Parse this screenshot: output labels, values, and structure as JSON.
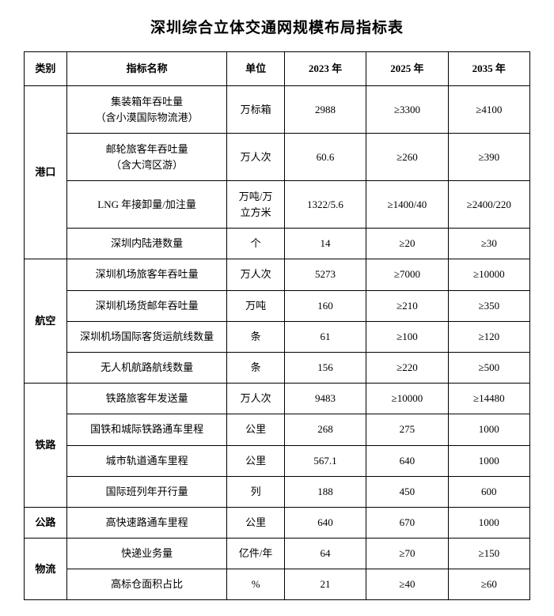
{
  "title": "深圳综合立体交通网规模布局指标表",
  "headers": {
    "category": "类别",
    "indicator": "指标名称",
    "unit": "单位",
    "y2023": "2023 年",
    "y2025": "2025 年",
    "y2035": "2035 年"
  },
  "groups": [
    {
      "category": "港口",
      "rows": [
        {
          "name": "集装箱年吞吐量\n（含小漠国际物流港）",
          "unit": "万标箱",
          "y2023": "2988",
          "y2025": "≥3300",
          "y2035": "≥4100"
        },
        {
          "name": "邮轮旅客年吞吐量\n（含大湾区游）",
          "unit": "万人次",
          "y2023": "60.6",
          "y2025": "≥260",
          "y2035": "≥390"
        },
        {
          "name": "LNG 年接卸量/加注量",
          "unit": "万吨/万\n立方米",
          "y2023": "1322/5.6",
          "y2025": "≥1400/40",
          "y2035": "≥2400/220"
        },
        {
          "name": "深圳内陆港数量",
          "unit": "个",
          "y2023": "14",
          "y2025": "≥20",
          "y2035": "≥30"
        }
      ]
    },
    {
      "category": "航空",
      "rows": [
        {
          "name": "深圳机场旅客年吞吐量",
          "unit": "万人次",
          "y2023": "5273",
          "y2025": "≥7000",
          "y2035": "≥10000"
        },
        {
          "name": "深圳机场货邮年吞吐量",
          "unit": "万吨",
          "y2023": "160",
          "y2025": "≥210",
          "y2035": "≥350"
        },
        {
          "name": "深圳机场国际客货运航线数量",
          "unit": "条",
          "y2023": "61",
          "y2025": "≥100",
          "y2035": "≥120"
        },
        {
          "name": "无人机航路航线数量",
          "unit": "条",
          "y2023": "156",
          "y2025": "≥220",
          "y2035": "≥500"
        }
      ]
    },
    {
      "category": "铁路",
      "rows": [
        {
          "name": "铁路旅客年发送量",
          "unit": "万人次",
          "y2023": "9483",
          "y2025": "≥10000",
          "y2035": "≥14480"
        },
        {
          "name": "国铁和城际铁路通车里程",
          "unit": "公里",
          "y2023": "268",
          "y2025": "275",
          "y2035": "1000"
        },
        {
          "name": "城市轨道通车里程",
          "unit": "公里",
          "y2023": "567.1",
          "y2025": "640",
          "y2035": "1000"
        },
        {
          "name": "国际班列年开行量",
          "unit": "列",
          "y2023": "188",
          "y2025": "450",
          "y2035": "600"
        }
      ]
    },
    {
      "category": "公路",
      "rows": [
        {
          "name": "高快速路通车里程",
          "unit": "公里",
          "y2023": "640",
          "y2025": "670",
          "y2035": "1000"
        }
      ]
    },
    {
      "category": "物流",
      "rows": [
        {
          "name": "快递业务量",
          "unit": "亿件/年",
          "y2023": "64",
          "y2025": "≥70",
          "y2035": "≥150"
        },
        {
          "name": "高标仓面积占比",
          "unit": "%",
          "y2023": "21",
          "y2025": "≥40",
          "y2035": "≥60"
        }
      ]
    }
  ]
}
